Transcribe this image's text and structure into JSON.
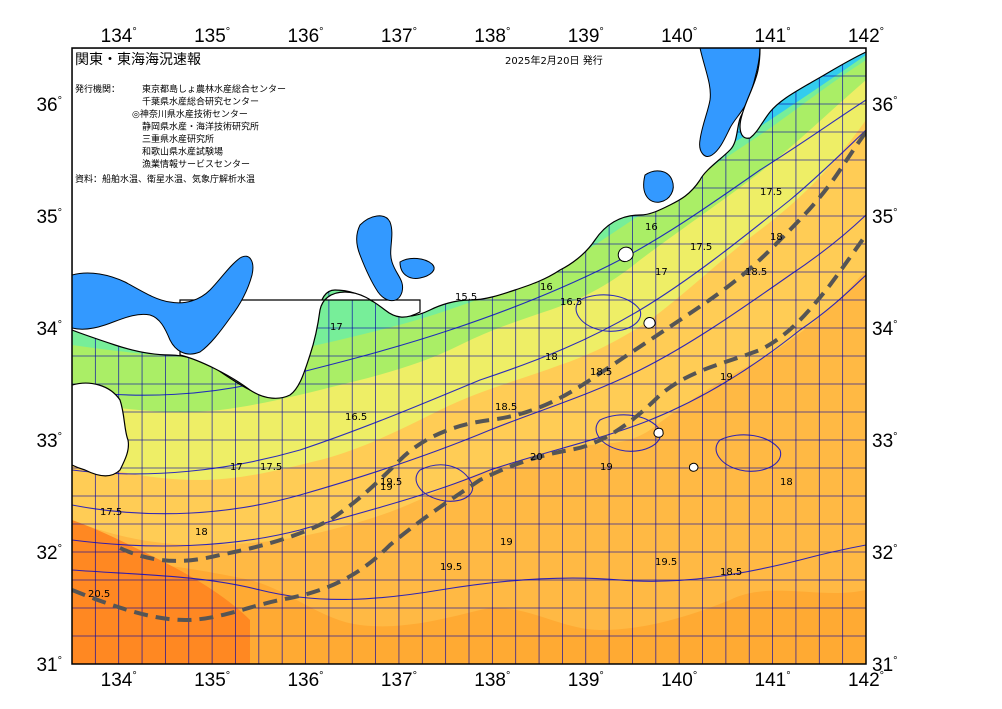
{
  "title": "関東・東海海況速報",
  "issue_date": "2025年2月20日 発行",
  "issuers_label": "発行機関：",
  "issuers": [
    "東京都島しょ農林水産総合センター",
    "千葉県水産総合研究センター",
    "◎神奈川県水産技術センター",
    "静岡県水産・海洋技術研究所",
    "三重県水産研究所",
    "和歌山県水産試験場",
    "漁業情報サービスセンター"
  ],
  "source": "資料：船舶水温、衛星水温、気象庁解析水温",
  "lon_ticks": [
    "134",
    "135",
    "136",
    "137",
    "138",
    "139",
    "140",
    "141",
    "142"
  ],
  "lat_ticks": [
    "36",
    "35",
    "34",
    "33",
    "32",
    "31"
  ],
  "degree_symbol": "°",
  "contour_labels": [
    "15.5",
    "16",
    "16.5",
    "17",
    "17.5",
    "18",
    "18.5",
    "19",
    "19.5",
    "20",
    "20.5"
  ],
  "colors": {
    "land": "#ffffff",
    "inner_bay": "#3399ff",
    "contour": "#0000cc",
    "grid": "#0000aa",
    "kuroshio_axis": "#555555",
    "sst_14": "#33bbee",
    "sst_15": "#66ee99",
    "sst_16": "#99ee66",
    "sst_17": "#eeee66",
    "sst_18": "#ffcc55",
    "sst_19": "#ffaa33",
    "sst_20": "#ff8822"
  }
}
